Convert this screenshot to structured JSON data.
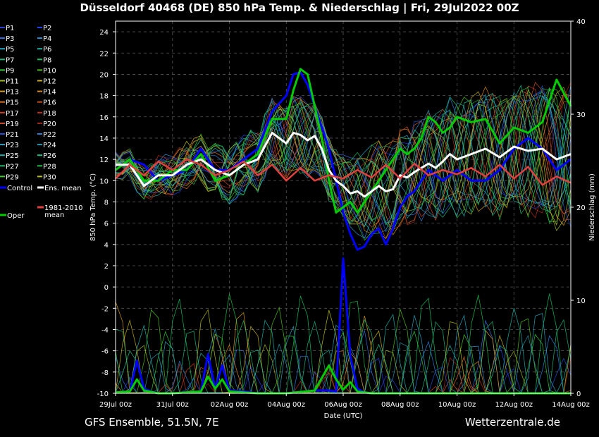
{
  "header": {
    "title": "Düsseldorf 40468 (DE)  850 hPa Temp. & Niederschlag | Fri, 29Jul2022 00Z"
  },
  "footer": {
    "left": "GFS Ensemble, 51.5N, 7E",
    "right": "Wetterzentrale.de"
  },
  "chart_data": {
    "type": "line",
    "xlabel": "Date (UTC)",
    "ylabel": "850 hPa Temp. (°C)",
    "y2label": "Niederschlag (mm)",
    "xlim": [
      0,
      384
    ],
    "ylim": [
      -10,
      25
    ],
    "y2lim": [
      0,
      40
    ],
    "x_ticks": [
      {
        "h": 0,
        "label": "29Jul 00z"
      },
      {
        "h": 48,
        "label": "31Jul 00z"
      },
      {
        "h": 96,
        "label": "02Aug 00z"
      },
      {
        "h": 144,
        "label": "04Aug 00z"
      },
      {
        "h": 192,
        "label": "06Aug 00z"
      },
      {
        "h": 240,
        "label": "08Aug 00z"
      },
      {
        "h": 288,
        "label": "10Aug 00z"
      },
      {
        "h": 336,
        "label": "12Aug 00z"
      },
      {
        "h": 384,
        "label": "14Aug 00z"
      }
    ],
    "y_ticks": [
      24,
      22,
      20,
      18,
      16,
      14,
      12,
      10,
      8,
      6,
      4,
      2,
      0,
      -2,
      -4,
      -6,
      -8,
      -10
    ],
    "y2_ticks": [
      40,
      30,
      20,
      10,
      0
    ],
    "grid": true,
    "legend": [
      {
        "name": "P1",
        "color": "#2a3fd8"
      },
      {
        "name": "P2",
        "color": "#2244ee"
      },
      {
        "name": "P3",
        "color": "#3a6fe0"
      },
      {
        "name": "P4",
        "color": "#2f8fd0"
      },
      {
        "name": "P5",
        "color": "#25a6c8"
      },
      {
        "name": "P6",
        "color": "#1fb0a0"
      },
      {
        "name": "P7",
        "color": "#1db880"
      },
      {
        "name": "P8",
        "color": "#18c060"
      },
      {
        "name": "P9",
        "color": "#30c838"
      },
      {
        "name": "P10",
        "color": "#50c020"
      },
      {
        "name": "P11",
        "color": "#a0b820"
      },
      {
        "name": "P12",
        "color": "#c8b020"
      },
      {
        "name": "P13",
        "color": "#d8a020"
      },
      {
        "name": "P14",
        "color": "#d88a20"
      },
      {
        "name": "P15",
        "color": "#d87020"
      },
      {
        "name": "P16",
        "color": "#c85020"
      },
      {
        "name": "P17",
        "color": "#c84020"
      },
      {
        "name": "P18",
        "color": "#b83020"
      },
      {
        "name": "P19",
        "color": "#d05030"
      },
      {
        "name": "P20",
        "color": "#a02818"
      },
      {
        "name": "P21",
        "color": "#2050d0"
      },
      {
        "name": "P22",
        "color": "#2a80d8"
      },
      {
        "name": "P23",
        "color": "#30a0c0"
      },
      {
        "name": "P24",
        "color": "#2a98b0"
      },
      {
        "name": "P25",
        "color": "#1cb0a8"
      },
      {
        "name": "P26",
        "color": "#20c090"
      },
      {
        "name": "P27",
        "color": "#20b870"
      },
      {
        "name": "P28",
        "color": "#20c048"
      },
      {
        "name": "P29",
        "color": "#40c828"
      },
      {
        "name": "P30",
        "color": "#b8c020"
      },
      {
        "name": "Control",
        "color": "#0000ff"
      },
      {
        "name": "Ens. mean",
        "color": "#ffffff"
      },
      {
        "name": "1981-2010\nmean",
        "color": "#e04040"
      },
      {
        "name": "Oper",
        "color": "#00cc00"
      }
    ],
    "series": [
      {
        "name": "Control",
        "color": "#0000ff",
        "x": [
          0,
          12,
          24,
          36,
          48,
          60,
          72,
          84,
          96,
          108,
          120,
          132,
          144,
          150,
          156,
          162,
          168,
          174,
          180,
          186,
          192,
          198,
          204,
          210,
          216,
          222,
          228,
          234,
          240,
          246,
          252,
          258,
          264,
          270,
          276,
          282,
          288,
          300,
          312,
          324,
          336,
          348,
          360,
          372,
          384
        ],
        "y": [
          11,
          12,
          11.5,
          10,
          10.5,
          11,
          13,
          11,
          11,
          12,
          13,
          16.5,
          18,
          20,
          20.2,
          19,
          17,
          15,
          13,
          10,
          7,
          5,
          3.5,
          3.8,
          5,
          5.5,
          4,
          5.5,
          7.5,
          8.5,
          9,
          10,
          11,
          10.5,
          10,
          10.5,
          11,
          10,
          10,
          11,
          13,
          14,
          13,
          11,
          12
        ]
      },
      {
        "name": "Oper",
        "color": "#00cc00",
        "x": [
          0,
          12,
          24,
          36,
          48,
          60,
          72,
          84,
          96,
          108,
          120,
          132,
          144,
          150,
          156,
          162,
          168,
          174,
          180,
          186,
          192,
          198,
          204,
          210,
          216,
          222,
          228,
          234,
          240,
          246,
          252,
          258,
          264,
          270,
          276,
          282,
          288,
          300,
          312,
          324,
          336,
          348,
          360,
          372,
          384
        ],
        "y": [
          11,
          12,
          10,
          10,
          11,
          11,
          12.5,
          10,
          10.5,
          11.5,
          12.5,
          15.8,
          15.8,
          18.5,
          20.5,
          20,
          17,
          14,
          10,
          7,
          7.5,
          8,
          7,
          8,
          9,
          10,
          11,
          12,
          13,
          12.5,
          13,
          14,
          16,
          15.5,
          14.5,
          15,
          16,
          15.5,
          15.8,
          13.5,
          15,
          14.5,
          15.5,
          19.5,
          17
        ]
      },
      {
        "name": "Ens. mean",
        "color": "#ffffff",
        "x": [
          0,
          12,
          24,
          36,
          48,
          60,
          72,
          84,
          96,
          108,
          120,
          132,
          144,
          150,
          156,
          162,
          168,
          174,
          180,
          186,
          192,
          198,
          204,
          210,
          216,
          222,
          228,
          234,
          240,
          246,
          252,
          258,
          264,
          270,
          276,
          282,
          288,
          300,
          312,
          324,
          336,
          348,
          360,
          372,
          384
        ],
        "y": [
          11.5,
          11.5,
          9.5,
          10.5,
          10.5,
          11.5,
          12,
          11,
          10.5,
          11.5,
          12,
          14.5,
          13.5,
          14.5,
          14.3,
          13.8,
          14.2,
          13,
          11,
          10,
          9.5,
          8.8,
          9,
          8.5,
          9,
          9.5,
          9,
          9.2,
          10.5,
          10.3,
          10.8,
          11.2,
          11.6,
          11.2,
          11.8,
          12.5,
          12,
          12.5,
          13,
          12.2,
          13.2,
          12.8,
          13,
          12,
          12.5
        ]
      },
      {
        "name": "1981-2010 mean",
        "color": "#e04040",
        "x": [
          0,
          12,
          24,
          36,
          48,
          60,
          72,
          84,
          96,
          108,
          120,
          132,
          144,
          156,
          168,
          180,
          192,
          204,
          216,
          228,
          240,
          252,
          264,
          276,
          288,
          300,
          312,
          324,
          336,
          348,
          360,
          372,
          384
        ],
        "y": [
          10.2,
          11.5,
          10.5,
          11.8,
          11,
          12,
          11.5,
          10.5,
          11,
          11.8,
          10.5,
          11.5,
          10,
          11.2,
          10,
          10.5,
          10.2,
          11,
          10.3,
          11.5,
          10.2,
          11.6,
          10.5,
          11,
          10.6,
          11.2,
          10.4,
          11.5,
          10.2,
          11.3,
          9.6,
          10.4,
          9.8
        ]
      }
    ],
    "precip_series": [
      {
        "name": "Control",
        "color": "#0000ff",
        "x": [
          0,
          12,
          18,
          24,
          30,
          36,
          48,
          72,
          78,
          84,
          90,
          96,
          108,
          120,
          144,
          168,
          180,
          186,
          192,
          198,
          204,
          210,
          216,
          384
        ],
        "y": [
          0.1,
          0.2,
          3.5,
          0.5,
          0.2,
          0,
          0,
          0.2,
          4.2,
          0.5,
          3,
          0.3,
          0.2,
          0,
          0,
          0.3,
          0.3,
          0.2,
          14.5,
          4,
          0.5,
          0.1,
          0,
          0
        ]
      },
      {
        "name": "Oper",
        "color": "#00cc00",
        "x": [
          0,
          12,
          18,
          24,
          36,
          48,
          72,
          78,
          84,
          90,
          96,
          108,
          120,
          144,
          168,
          180,
          186,
          192,
          198,
          204,
          216,
          384
        ],
        "y": [
          0.1,
          0.2,
          1.5,
          0.3,
          0,
          0,
          0.2,
          1.8,
          0.5,
          1.5,
          0.2,
          0.1,
          0,
          0,
          0.3,
          3,
          1.5,
          0.4,
          1.2,
          0.2,
          0,
          0
        ]
      }
    ]
  }
}
